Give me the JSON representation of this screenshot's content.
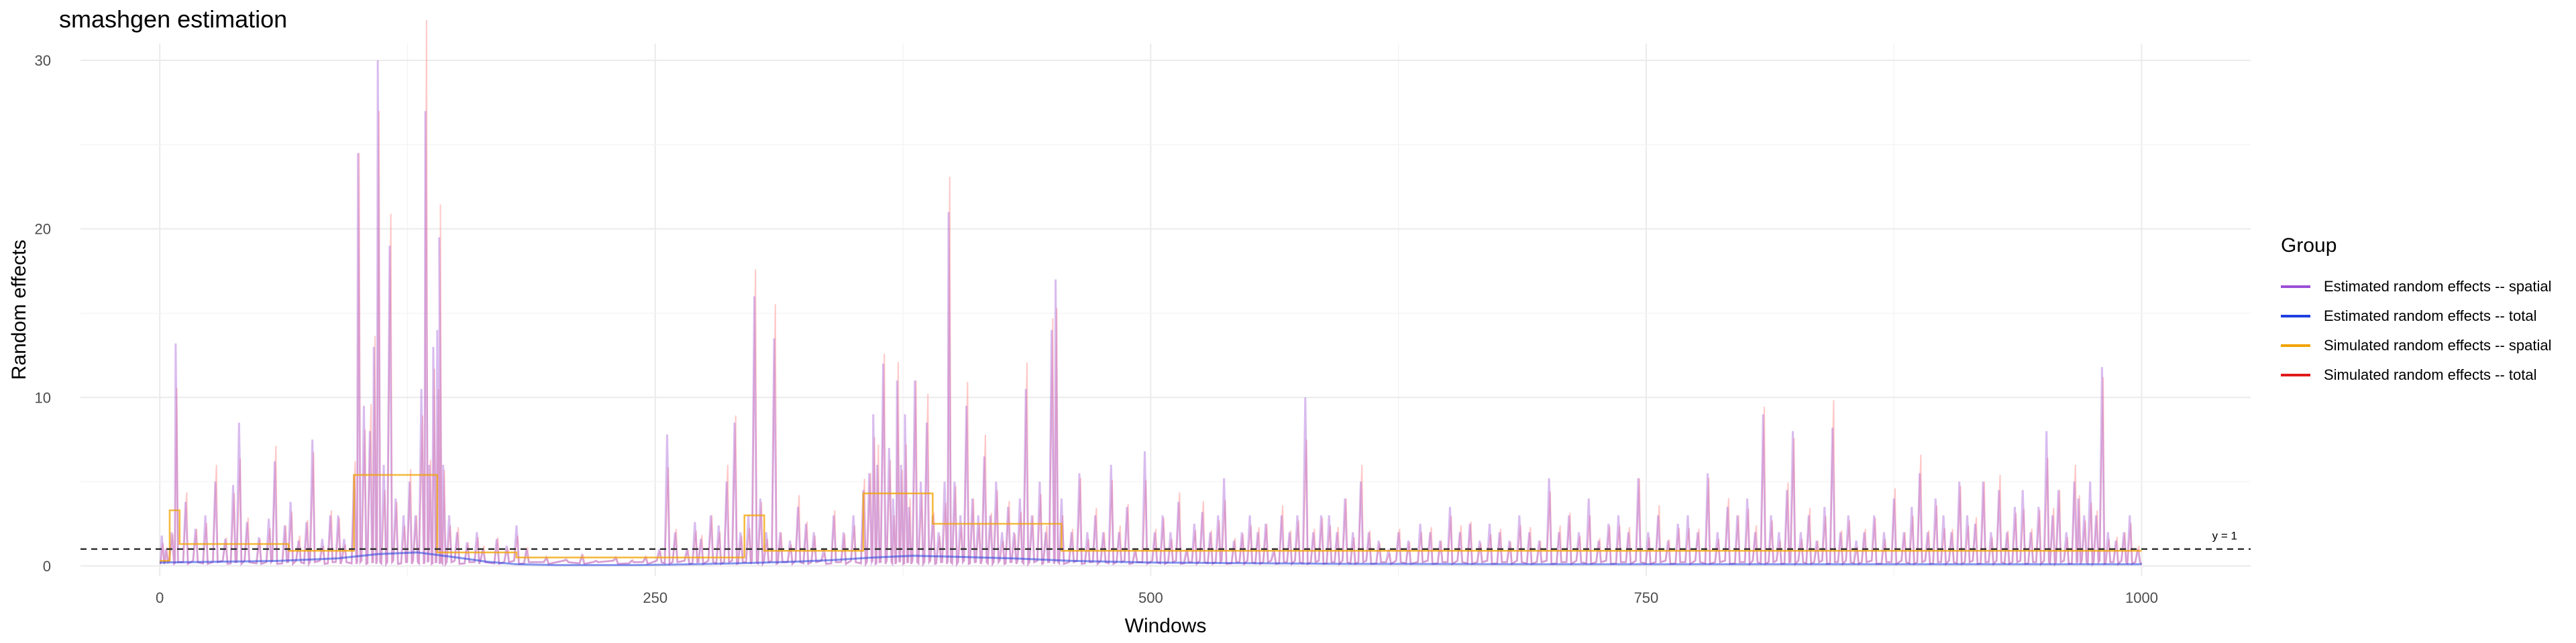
{
  "chart_data": {
    "type": "line",
    "title": "smashgen estimation",
    "xlabel": "Windows",
    "ylabel": "Random effects",
    "xlim": [
      -40,
      1055
    ],
    "ylim": [
      -0.6,
      31
    ],
    "x_ticks": [
      0,
      250,
      500,
      750,
      1000
    ],
    "y_ticks": [
      0,
      10,
      20,
      30
    ],
    "grid": true,
    "reference_line": {
      "y": 1,
      "label": "y = 1",
      "style": "dashed",
      "color": "#333333"
    },
    "legend": {
      "title": "Group",
      "placement": "right",
      "entries": [
        {
          "label": "Estimated random effects -- spatial",
          "color": "#9b4fd6"
        },
        {
          "label": "Estimated random effects -- total",
          "color": "#1f3fe0"
        },
        {
          "label": "Simulated random effects -- spatial",
          "color": "#f2a300"
        },
        {
          "label": "Simulated random effects -- total",
          "color": "#e01a1a"
        }
      ]
    },
    "series": [
      {
        "name": "Simulated random effects -- spatial",
        "color": "#f2a300",
        "x": [
          0,
          5,
          5,
          10,
          10,
          65,
          65,
          98,
          98,
          140,
          140,
          180,
          180,
          295,
          295,
          305,
          305,
          355,
          355,
          390,
          390,
          455,
          455,
          1000
        ],
        "y": [
          0.3,
          0.3,
          3.3,
          3.3,
          1.3,
          1.3,
          0.9,
          0.9,
          5.4,
          5.4,
          0.8,
          0.8,
          0.5,
          0.5,
          3.0,
          3.0,
          0.9,
          0.9,
          4.3,
          4.3,
          2.5,
          2.5,
          0.9,
          0.9
        ]
      },
      {
        "name": "Estimated random effects -- total",
        "color": "#1f3fe0",
        "x": [
          0,
          30,
          60,
          90,
          110,
          130,
          150,
          165,
          180,
          200,
          220,
          240,
          260,
          290,
          320,
          340,
          360,
          380,
          400,
          430,
          460,
          500,
          600,
          700,
          800,
          900,
          1000
        ],
        "y": [
          0.2,
          0.25,
          0.3,
          0.45,
          0.7,
          0.8,
          0.5,
          0.25,
          0.1,
          0.05,
          0.05,
          0.05,
          0.08,
          0.15,
          0.25,
          0.35,
          0.5,
          0.6,
          0.55,
          0.45,
          0.3,
          0.2,
          0.12,
          0.1,
          0.1,
          0.1,
          0.1
        ]
      }
    ],
    "spikes": [
      [
        1,
        1.8
      ],
      [
        3,
        1.0
      ],
      [
        6,
        2.0
      ],
      [
        8,
        13.2
      ],
      [
        13,
        3.8
      ],
      [
        18,
        2.2
      ],
      [
        23,
        3.0
      ],
      [
        28,
        5.0
      ],
      [
        33,
        1.6
      ],
      [
        37,
        4.8
      ],
      [
        40,
        8.5
      ],
      [
        44,
        2.6
      ],
      [
        50,
        1.7
      ],
      [
        55,
        2.8
      ],
      [
        58,
        6.2
      ],
      [
        63,
        2.4
      ],
      [
        66,
        3.8
      ],
      [
        70,
        1.5
      ],
      [
        74,
        2.6
      ],
      [
        77,
        7.5
      ],
      [
        82,
        1.6
      ],
      [
        86,
        3.0
      ],
      [
        90,
        3.0
      ],
      [
        93,
        1.6
      ],
      [
        98,
        5.4
      ],
      [
        100,
        24.5
      ],
      [
        103,
        9.5
      ],
      [
        106,
        8.0
      ],
      [
        108,
        13.0
      ],
      [
        110,
        30.0
      ],
      [
        113,
        6.0
      ],
      [
        116,
        19.0
      ],
      [
        119,
        4.0
      ],
      [
        123,
        3.0
      ],
      [
        126,
        5.0
      ],
      [
        129,
        3.0
      ],
      [
        132,
        10.5
      ],
      [
        134,
        27.0
      ],
      [
        136,
        6.0
      ],
      [
        138,
        13.0
      ],
      [
        140,
        14.0
      ],
      [
        141,
        19.5
      ],
      [
        143,
        6.0
      ],
      [
        146,
        3.0
      ],
      [
        150,
        2.0
      ],
      [
        155,
        1.4
      ],
      [
        160,
        2.0
      ],
      [
        163,
        1.0
      ],
      [
        170,
        1.6
      ],
      [
        175,
        1.2
      ],
      [
        180,
        2.4
      ],
      [
        185,
        1.0
      ],
      [
        195,
        0.5
      ],
      [
        205,
        0.4
      ],
      [
        213,
        0.6
      ],
      [
        220,
        0.3
      ],
      [
        230,
        0.5
      ],
      [
        238,
        0.3
      ],
      [
        245,
        0.5
      ],
      [
        252,
        1.0
      ],
      [
        256,
        7.8
      ],
      [
        260,
        2.0
      ],
      [
        266,
        1.0
      ],
      [
        270,
        2.6
      ],
      [
        273,
        1.6
      ],
      [
        278,
        3.0
      ],
      [
        282,
        2.4
      ],
      [
        286,
        5.0
      ],
      [
        290,
        8.5
      ],
      [
        293,
        2.0
      ],
      [
        297,
        3.0
      ],
      [
        300,
        16.0
      ],
      [
        303,
        4.0
      ],
      [
        306,
        2.0
      ],
      [
        310,
        13.5
      ],
      [
        313,
        2.0
      ],
      [
        318,
        1.5
      ],
      [
        322,
        3.5
      ],
      [
        326,
        2.5
      ],
      [
        330,
        2.0
      ],
      [
        335,
        1.0
      ],
      [
        340,
        3.0
      ],
      [
        345,
        2.0
      ],
      [
        350,
        3.0
      ],
      [
        355,
        4.5
      ],
      [
        358,
        5.5
      ],
      [
        360,
        9.0
      ],
      [
        362,
        6.0
      ],
      [
        365,
        12.0
      ],
      [
        368,
        7.0
      ],
      [
        370,
        4.0
      ],
      [
        372,
        11.0
      ],
      [
        374,
        6.0
      ],
      [
        376,
        9.0
      ],
      [
        378,
        3.5
      ],
      [
        381,
        11.0
      ],
      [
        384,
        5.0
      ],
      [
        387,
        8.5
      ],
      [
        390,
        3.0
      ],
      [
        393,
        2.0
      ],
      [
        396,
        5.0
      ],
      [
        398,
        21.0
      ],
      [
        401,
        5.0
      ],
      [
        404,
        3.0
      ],
      [
        407,
        9.5
      ],
      [
        410,
        4.0
      ],
      [
        413,
        3.0
      ],
      [
        416,
        6.5
      ],
      [
        419,
        3.0
      ],
      [
        422,
        5.0
      ],
      [
        425,
        2.0
      ],
      [
        428,
        3.5
      ],
      [
        431,
        2.0
      ],
      [
        434,
        4.0
      ],
      [
        437,
        10.5
      ],
      [
        440,
        3.0
      ],
      [
        444,
        5.0
      ],
      [
        447,
        2.0
      ],
      [
        450,
        14.0
      ],
      [
        452,
        17.0
      ],
      [
        455,
        4.0
      ],
      [
        460,
        2.0
      ],
      [
        464,
        5.5
      ],
      [
        468,
        2.0
      ],
      [
        472,
        3.0
      ],
      [
        476,
        2.0
      ],
      [
        480,
        6.0
      ],
      [
        484,
        2.0
      ],
      [
        488,
        3.5
      ],
      [
        492,
        1.0
      ],
      [
        497,
        6.8
      ],
      [
        502,
        2.0
      ],
      [
        506,
        3.0
      ],
      [
        510,
        2.0
      ],
      [
        514,
        3.8
      ],
      [
        518,
        1.0
      ],
      [
        522,
        2.5
      ],
      [
        526,
        3.2
      ],
      [
        530,
        2.0
      ],
      [
        534,
        3.0
      ],
      [
        537,
        5.2
      ],
      [
        542,
        1.5
      ],
      [
        546,
        2.0
      ],
      [
        550,
        3.0
      ],
      [
        554,
        2.0
      ],
      [
        558,
        2.5
      ],
      [
        562,
        1.0
      ],
      [
        566,
        3.0
      ],
      [
        570,
        2.0
      ],
      [
        574,
        3.0
      ],
      [
        578,
        10.0
      ],
      [
        582,
        2.0
      ],
      [
        586,
        3.0
      ],
      [
        590,
        3.0
      ],
      [
        594,
        2.0
      ],
      [
        598,
        4.0
      ],
      [
        602,
        2.0
      ],
      [
        606,
        5.0
      ],
      [
        610,
        2.0
      ],
      [
        615,
        1.5
      ],
      [
        620,
        1.0
      ],
      [
        625,
        2.0
      ],
      [
        630,
        1.5
      ],
      [
        636,
        2.5
      ],
      [
        641,
        2.0
      ],
      [
        646,
        1.5
      ],
      [
        651,
        3.5
      ],
      [
        656,
        2.0
      ],
      [
        661,
        2.5
      ],
      [
        666,
        1.5
      ],
      [
        671,
        2.5
      ],
      [
        676,
        2.0
      ],
      [
        681,
        1.5
      ],
      [
        686,
        3.0
      ],
      [
        691,
        2.0
      ],
      [
        696,
        1.5
      ],
      [
        701,
        5.2
      ],
      [
        706,
        2.0
      ],
      [
        711,
        3.0
      ],
      [
        716,
        2.0
      ],
      [
        721,
        4.0
      ],
      [
        726,
        1.5
      ],
      [
        731,
        2.5
      ],
      [
        736,
        3.0
      ],
      [
        741,
        2.0
      ],
      [
        746,
        5.2
      ],
      [
        751,
        2.0
      ],
      [
        756,
        3.0
      ],
      [
        761,
        1.5
      ],
      [
        766,
        2.5
      ],
      [
        771,
        3.0
      ],
      [
        776,
        2.0
      ],
      [
        781,
        5.5
      ],
      [
        786,
        2.0
      ],
      [
        791,
        3.5
      ],
      [
        796,
        3.0
      ],
      [
        801,
        4.0
      ],
      [
        805,
        2.0
      ],
      [
        809,
        9.0
      ],
      [
        813,
        3.0
      ],
      [
        817,
        2.0
      ],
      [
        821,
        4.5
      ],
      [
        824,
        8.0
      ],
      [
        828,
        2.0
      ],
      [
        832,
        3.0
      ],
      [
        836,
        1.5
      ],
      [
        840,
        3.5
      ],
      [
        844,
        8.2
      ],
      [
        848,
        2.0
      ],
      [
        852,
        3.0
      ],
      [
        856,
        1.5
      ],
      [
        860,
        2.0
      ],
      [
        865,
        3.0
      ],
      [
        870,
        2.0
      ],
      [
        875,
        4.0
      ],
      [
        880,
        2.0
      ],
      [
        884,
        3.5
      ],
      [
        888,
        5.5
      ],
      [
        892,
        2.0
      ],
      [
        896,
        4.0
      ],
      [
        900,
        3.0
      ],
      [
        904,
        2.0
      ],
      [
        908,
        5.0
      ],
      [
        912,
        3.0
      ],
      [
        916,
        2.5
      ],
      [
        920,
        5.0
      ],
      [
        924,
        2.0
      ],
      [
        928,
        4.5
      ],
      [
        932,
        2.0
      ],
      [
        936,
        3.5
      ],
      [
        940,
        4.5
      ],
      [
        944,
        2.0
      ],
      [
        948,
        3.5
      ],
      [
        952,
        8.0
      ],
      [
        955,
        3.0
      ],
      [
        958,
        4.5
      ],
      [
        962,
        2.0
      ],
      [
        966,
        5.0
      ],
      [
        968,
        4.0
      ],
      [
        971,
        3.0
      ],
      [
        974,
        5.0
      ],
      [
        977,
        3.0
      ],
      [
        980,
        11.8
      ],
      [
        983,
        2.0
      ],
      [
        987,
        1.5
      ],
      [
        991,
        2.0
      ],
      [
        994,
        3.0
      ],
      [
        998,
        1.0
      ]
    ]
  }
}
